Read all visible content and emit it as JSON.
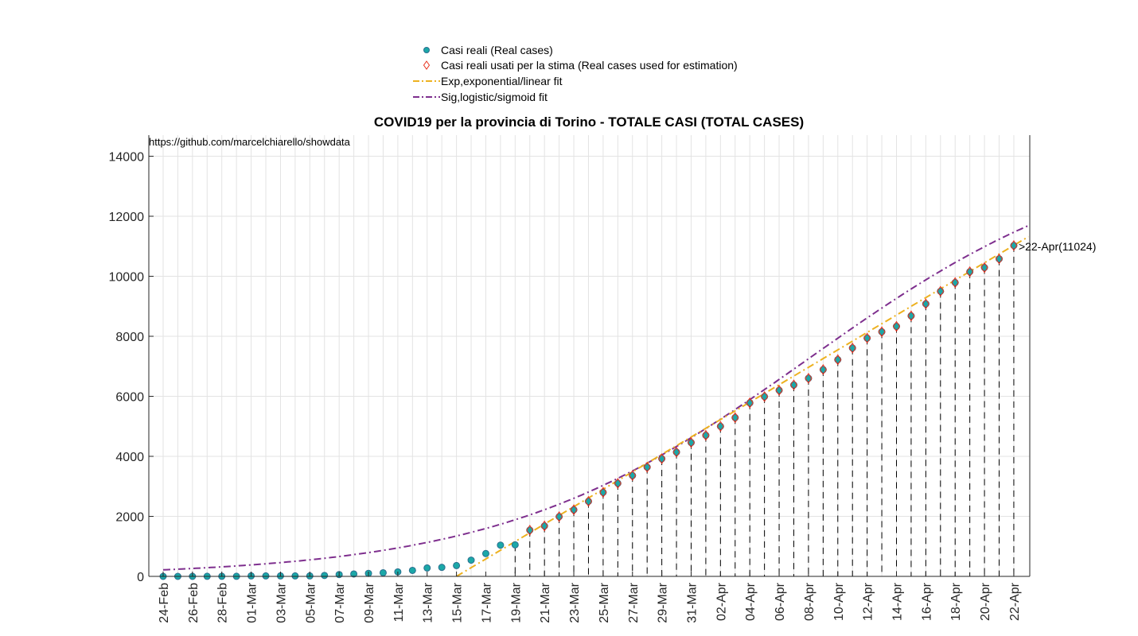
{
  "chart_data": {
    "type": "scatter",
    "title": "COVID19 per la provincia di Torino - TOTALE CASI (TOTAL CASES)",
    "source_text": "https://github.com/marcelchiarello/showdata",
    "xlabel": "",
    "ylabel": "",
    "x_start_date": "24-Feb",
    "x_tick_labels": [
      "24-Feb",
      "26-Feb",
      "28-Feb",
      "01-Mar",
      "03-Mar",
      "05-Mar",
      "07-Mar",
      "09-Mar",
      "11-Mar",
      "13-Mar",
      "15-Mar",
      "17-Mar",
      "19-Mar",
      "21-Mar",
      "23-Mar",
      "25-Mar",
      "27-Mar",
      "29-Mar",
      "31-Mar",
      "02-Apr",
      "04-Apr",
      "06-Apr",
      "08-Apr",
      "10-Apr",
      "12-Apr",
      "14-Apr",
      "16-Apr",
      "18-Apr",
      "20-Apr",
      "22-Apr"
    ],
    "y_ticks": [
      0,
      2000,
      4000,
      6000,
      8000,
      10000,
      12000,
      14000
    ],
    "ylim": [
      0,
      14000
    ],
    "grid": true,
    "legend_position": "top",
    "legend": [
      {
        "label": "Casi reali (Real cases)",
        "marker": "filled-circle",
        "color": "#1ba8a8"
      },
      {
        "label": "Casi reali usati per la stima (Real cases used for estimation)",
        "marker": "diamond",
        "color": "#e8311c"
      },
      {
        "label": "Exp,exponential/linear fit",
        "marker": "dash-dot",
        "color": "#edb120"
      },
      {
        "label": "Sig,logistic/sigmoid fit",
        "marker": "dash-dot",
        "color": "#7e2f8e"
      }
    ],
    "series": [
      {
        "name": "Casi reali (Real cases)",
        "x": [
          "24-Feb",
          "25-Feb",
          "26-Feb",
          "27-Feb",
          "28-Feb",
          "29-Feb",
          "01-Mar",
          "02-Mar",
          "03-Mar",
          "04-Mar",
          "05-Mar",
          "06-Mar",
          "07-Mar",
          "08-Mar",
          "09-Mar",
          "10-Mar",
          "11-Mar",
          "12-Mar",
          "13-Mar",
          "14-Mar",
          "15-Mar",
          "16-Mar",
          "17-Mar",
          "18-Mar",
          "19-Mar",
          "20-Mar",
          "21-Mar",
          "22-Mar",
          "23-Mar",
          "24-Mar",
          "25-Mar",
          "26-Mar",
          "27-Mar",
          "28-Mar",
          "29-Mar",
          "30-Mar",
          "31-Mar",
          "01-Apr",
          "02-Apr",
          "03-Apr",
          "04-Apr",
          "05-Apr",
          "06-Apr",
          "07-Apr",
          "08-Apr",
          "09-Apr",
          "10-Apr",
          "11-Apr",
          "12-Apr",
          "13-Apr",
          "14-Apr",
          "15-Apr",
          "16-Apr",
          "17-Apr",
          "18-Apr",
          "19-Apr",
          "20-Apr",
          "21-Apr",
          "22-Apr"
        ],
        "values": [
          0,
          0,
          0,
          3,
          3,
          3,
          15,
          15,
          15,
          15,
          15,
          30,
          60,
          80,
          100,
          120,
          150,
          200,
          280,
          300,
          360,
          540,
          760,
          1040,
          1050,
          1540,
          1680,
          1990,
          2220,
          2500,
          2800,
          3100,
          3360,
          3640,
          3920,
          4140,
          4460,
          4700,
          5000,
          5290,
          5780,
          5990,
          6200,
          6380,
          6600,
          6890,
          7220,
          7610,
          7940,
          8150,
          8330,
          8680,
          9080,
          9500,
          9790,
          10150,
          10290,
          10580,
          11024
        ]
      },
      {
        "name": "Casi reali usati per la stima (Real cases used for estimation)",
        "x_from": "20-Mar",
        "values": [
          1540,
          1680,
          1990,
          2220,
          2500,
          2800,
          3100,
          3360,
          3640,
          3920,
          4140,
          4460,
          4700,
          5000,
          5290,
          5780,
          5990,
          6200,
          6380,
          6600,
          6890,
          7220,
          7610,
          7940,
          8150,
          8330,
          8680,
          9080,
          9500,
          9790,
          10150,
          10290,
          10580,
          11024
        ]
      },
      {
        "name": "Exp,exponential/linear fit",
        "x": [
          "15-Mar",
          "23-Apr"
        ],
        "values": [
          0,
          11320
        ]
      },
      {
        "name": "Sig,logistic/sigmoid fit",
        "model": "logistic",
        "x_range": [
          "24-Feb",
          "23-Apr"
        ],
        "K": 14500,
        "r": 0.095,
        "t0_date": "08-Apr"
      }
    ],
    "annotations": [
      {
        "text": ">22-Apr(11024)",
        "x": "22-Apr",
        "y": 11024
      }
    ],
    "vertical_dashed_lines_from": "19-Mar"
  }
}
